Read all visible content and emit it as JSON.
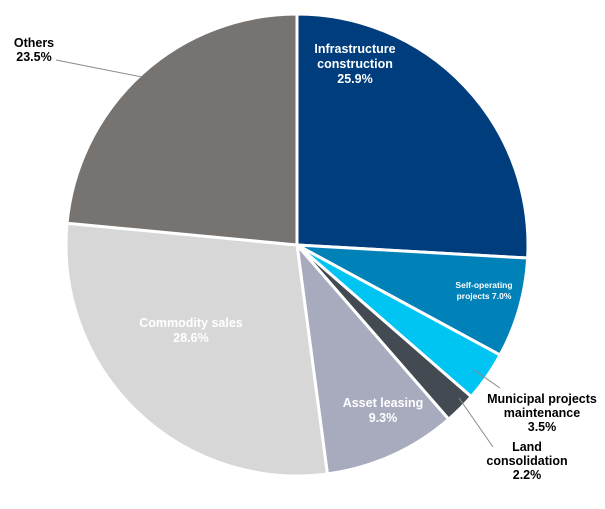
{
  "chart_data": {
    "type": "pie",
    "start_angle_deg": 0,
    "direction": "clockwise",
    "slices": [
      {
        "label": "Infrastructure construction",
        "value": 25.9,
        "display": [
          "Infrastructure",
          "construction",
          "25.9%"
        ],
        "color": "#003d7c",
        "text_color": "#ffffff"
      },
      {
        "label": "Self-operating projects",
        "value": 7.0,
        "display": [
          "Self-operating",
          "projects 7.0%"
        ],
        "color": "#0081b8",
        "text_color": "#ffffff"
      },
      {
        "label": "Municipal projects maintenance",
        "value": 3.5,
        "display": [
          "Municipal projects",
          "maintenance",
          "3.5%"
        ],
        "color": "#00c4f1",
        "text_color": "#000000"
      },
      {
        "label": "Land consolidation",
        "value": 2.2,
        "display": [
          "Land",
          "consolidation",
          "2.2%"
        ],
        "color": "#434a52",
        "text_color": "#000000"
      },
      {
        "label": "Asset leasing",
        "value": 9.3,
        "display": [
          "Asset leasing",
          "9.3%"
        ],
        "color": "#a7abbd",
        "text_color": "#ffffff"
      },
      {
        "label": "Commodity sales",
        "value": 28.6,
        "display": [
          "Commodity sales",
          "28.6%"
        ],
        "color": "#d7d7d7",
        "text_color": "#ffffff"
      },
      {
        "label": "Others",
        "value": 23.5,
        "display": [
          "Others",
          "23.5%"
        ],
        "color": "#777371",
        "text_color": "#000000"
      }
    ]
  }
}
